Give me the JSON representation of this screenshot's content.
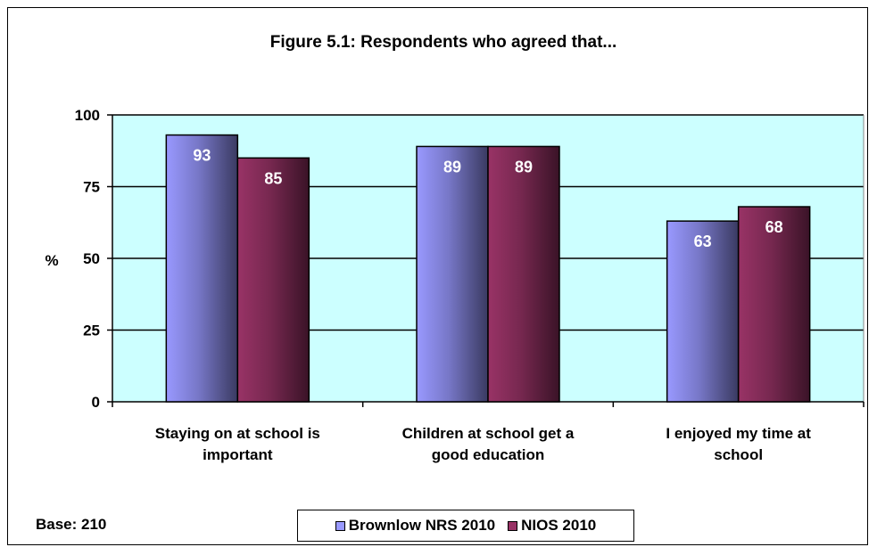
{
  "chart_data": {
    "type": "bar",
    "title": "Figure 5.1: Respondents who agreed that...",
    "ylabel": "%",
    "xlabel": "",
    "categories": [
      [
        "Staying on at school is",
        "important"
      ],
      [
        "Children at school get a",
        "good education"
      ],
      [
        "I enjoyed my time at",
        "school"
      ]
    ],
    "series": [
      {
        "name": "Brownlow NRS 2010",
        "values": [
          93,
          89,
          63
        ],
        "color": "#9999ff"
      },
      {
        "name": "NIOS 2010",
        "values": [
          85,
          89,
          68
        ],
        "color": "#993366"
      }
    ],
    "ylim": [
      0,
      100
    ],
    "yticks": [
      0,
      25,
      50,
      75,
      100
    ],
    "grid": true,
    "legend": "bottom-center",
    "plot_background": "#ccffff"
  },
  "base_note": "Base:  210"
}
